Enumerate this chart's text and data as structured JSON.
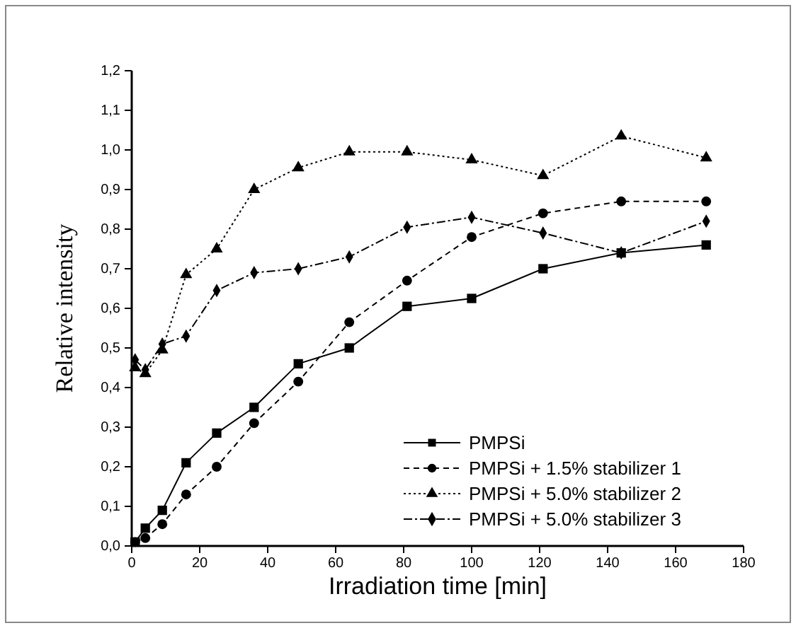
{
  "chart_data": {
    "type": "line",
    "xlabel": "Irradiation time [min]",
    "ylabel": "Relative intensity",
    "x": [
      1,
      4,
      9,
      16,
      25,
      36,
      49,
      64,
      81,
      100,
      121,
      144,
      169
    ],
    "xlim": [
      0,
      180
    ],
    "xticks": [
      0,
      20,
      40,
      60,
      80,
      100,
      120,
      140,
      160,
      180
    ],
    "ylim": [
      0,
      1.2
    ],
    "yticks": [
      {
        "value": 0,
        "label": "0,0"
      },
      {
        "value": 0.1,
        "label": "0,1"
      },
      {
        "value": 0.2,
        "label": "0,2"
      },
      {
        "value": 0.3,
        "label": "0,3"
      },
      {
        "value": 0.4,
        "label": "0,4"
      },
      {
        "value": 0.5,
        "label": "0,5"
      },
      {
        "value": 0.6,
        "label": "0,6"
      },
      {
        "value": 0.7,
        "label": "0,7"
      },
      {
        "value": 0.8,
        "label": "0,8"
      },
      {
        "value": 0.9,
        "label": "0,9"
      },
      {
        "value": 1.0,
        "label": "1,0"
      },
      {
        "value": 1.1,
        "label": "1,1"
      },
      {
        "value": 1.2,
        "label": "1,2"
      }
    ],
    "legend": "bottom right",
    "grid": false,
    "series": [
      {
        "name": "PMPSi",
        "color": "#000000",
        "marker": "square",
        "line_style": "solid",
        "values": [
          0.01,
          0.045,
          0.09,
          0.21,
          0.285,
          0.35,
          0.46,
          0.5,
          0.605,
          0.625,
          0.7,
          0.74,
          0.76
        ]
      },
      {
        "name": "PMPSi + 1.5% stabilizer 1",
        "color": "#000000",
        "marker": "circle",
        "line_style": "dashed",
        "values": [
          0.01,
          0.02,
          0.055,
          0.13,
          0.2,
          0.31,
          0.415,
          0.565,
          0.67,
          0.78,
          0.84,
          0.87,
          0.87
        ]
      },
      {
        "name": "PMPSi + 5.0% stabilizer 2",
        "color": "#000000",
        "marker": "triangle",
        "line_style": "dotted",
        "values": [
          0.45,
          0.435,
          0.495,
          0.685,
          0.75,
          0.9,
          0.955,
          0.995,
          0.995,
          0.975,
          0.935,
          1.035,
          0.98
        ]
      },
      {
        "name": "PMPSi + 5.0% stabilizer 3",
        "color": "#000000",
        "marker": "diamond",
        "line_style": "dashdot",
        "values": [
          0.47,
          0.445,
          0.51,
          0.53,
          0.645,
          0.69,
          0.7,
          0.73,
          0.805,
          0.83,
          0.79,
          0.74,
          0.82
        ]
      }
    ]
  }
}
